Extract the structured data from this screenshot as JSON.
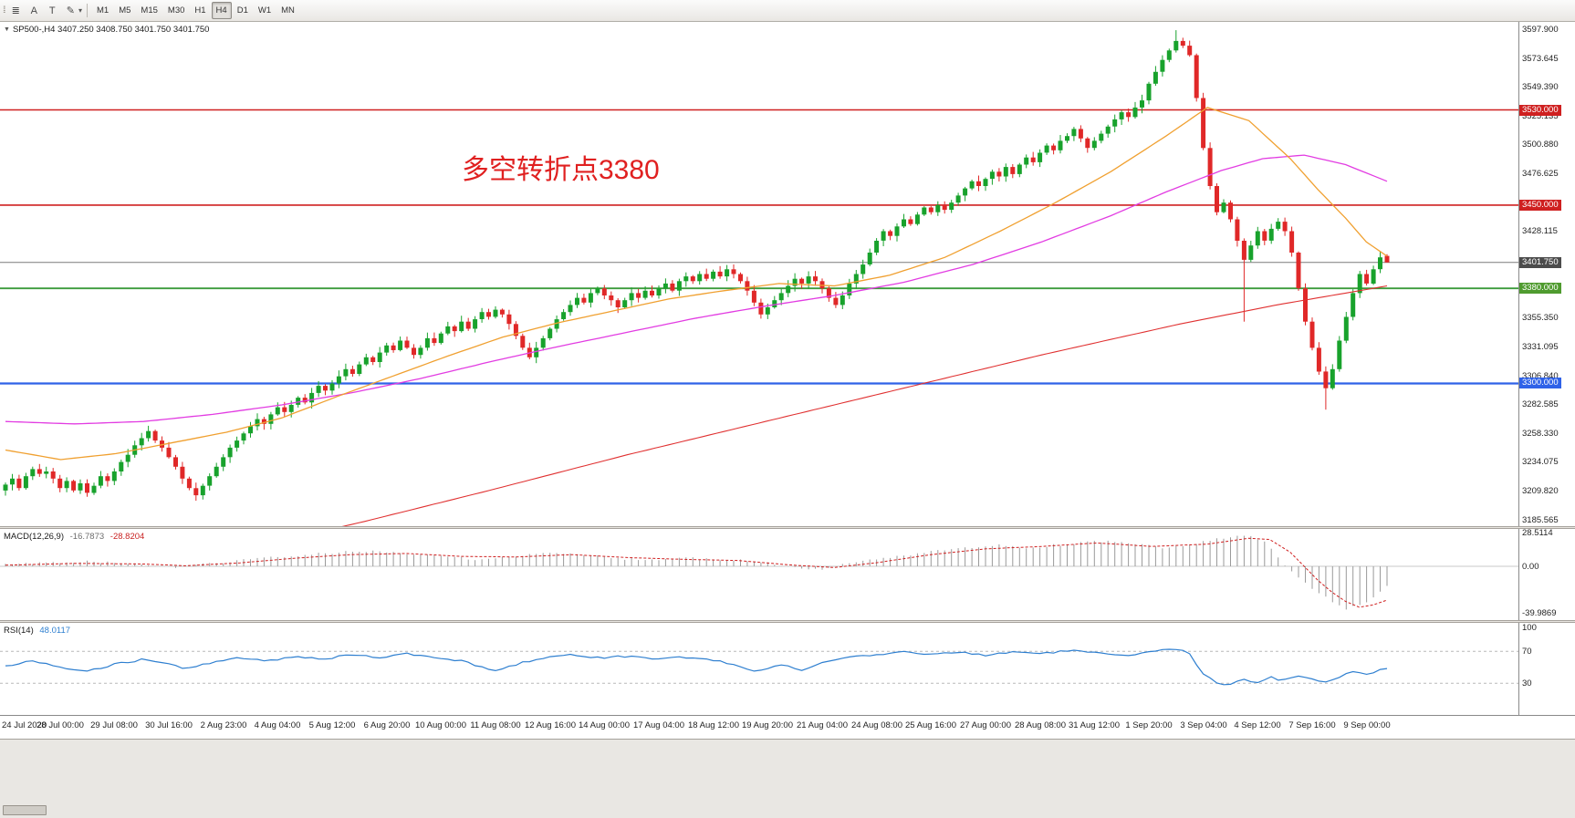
{
  "toolbar": {
    "active_timeframe": "H4",
    "icons": [
      {
        "name": "templates-icon",
        "glyph": "≣"
      },
      {
        "name": "text-annotation-icon",
        "glyph": "A"
      },
      {
        "name": "text-box-icon",
        "glyph": "T"
      },
      {
        "name": "draw-style-icon",
        "glyph": "✎"
      },
      {
        "name": "dropdown-caret-icon",
        "glyph": "▾"
      }
    ],
    "timeframes": [
      "M1",
      "M5",
      "M15",
      "M30",
      "H1",
      "H4",
      "D1",
      "W1",
      "MN"
    ]
  },
  "header": {
    "collapse_glyph": "▼",
    "symbol_line": "SP500-,H4  3407.250 3408.750 3401.750 3401.750"
  },
  "annotation": {
    "text": "多空转折点3380",
    "color": "#e02020"
  },
  "indicators": {
    "macd": {
      "title": "MACD(12,26,9)",
      "main_value": "-16.7873",
      "signal_value": "-28.8204"
    },
    "rsi": {
      "title": "RSI(14)",
      "value": "48.0117"
    }
  },
  "chart_data": {
    "type": "candlestick",
    "symbol": "SP500-",
    "timeframe": "H4",
    "ohlc_current": {
      "open": 3407.25,
      "high": 3408.75,
      "low": 3401.75,
      "close": 3401.75
    },
    "first_open": 3210,
    "closes": [
      3215,
      3220,
      3212,
      3222,
      3228,
      3224,
      3226,
      3220,
      3212,
      3218,
      3210,
      3216,
      3208,
      3214,
      3222,
      3218,
      3226,
      3234,
      3240,
      3248,
      3254,
      3260,
      3252,
      3246,
      3238,
      3230,
      3220,
      3212,
      3206,
      3214,
      3222,
      3230,
      3238,
      3246,
      3252,
      3258,
      3264,
      3270,
      3266,
      3274,
      3280,
      3276,
      3282,
      3288,
      3284,
      3292,
      3298,
      3294,
      3300,
      3306,
      3312,
      3308,
      3316,
      3322,
      3318,
      3326,
      3332,
      3328,
      3336,
      3330,
      3324,
      3330,
      3338,
      3334,
      3342,
      3348,
      3344,
      3352,
      3346,
      3354,
      3360,
      3356,
      3362,
      3358,
      3350,
      3340,
      3330,
      3322,
      3330,
      3338,
      3346,
      3354,
      3360,
      3366,
      3372,
      3368,
      3376,
      3380,
      3374,
      3370,
      3364,
      3370,
      3376,
      3372,
      3378,
      3374,
      3380,
      3384,
      3378,
      3386,
      3390,
      3386,
      3392,
      3388,
      3394,
      3390,
      3396,
      3392,
      3386,
      3378,
      3368,
      3358,
      3364,
      3370,
      3376,
      3382,
      3388,
      3384,
      3390,
      3386,
      3380,
      3372,
      3366,
      3374,
      3384,
      3392,
      3400,
      3410,
      3420,
      3428,
      3424,
      3432,
      3438,
      3434,
      3442,
      3448,
      3444,
      3450,
      3446,
      3452,
      3458,
      3464,
      3470,
      3466,
      3472,
      3478,
      3474,
      3482,
      3476,
      3484,
      3490,
      3486,
      3494,
      3500,
      3496,
      3504,
      3508,
      3514,
      3506,
      3498,
      3504,
      3510,
      3516,
      3522,
      3528,
      3524,
      3532,
      3538,
      3552,
      3562,
      3572,
      3580,
      3588,
      3584,
      3576,
      3540,
      3498,
      3466,
      3444,
      3452,
      3438,
      3420,
      3404,
      3416,
      3428,
      3420,
      3430,
      3436,
      3428,
      3410,
      3380,
      3352,
      3330,
      3310,
      3296,
      3312,
      3336,
      3356,
      3376,
      3392,
      3384,
      3396,
      3406,
      3401.75
    ],
    "wick_overrides": {
      "172": {
        "high": 3597
      },
      "182": {
        "low": 3352
      },
      "194": {
        "low": 3278
      },
      "203": {
        "open": 3407.25,
        "high": 3408.75,
        "low": 3401.75,
        "close": 3401.75
      }
    },
    "levels": [
      {
        "price": 3530.0,
        "label": "3530.000",
        "color": "#cf2020",
        "tag_color": "#cf2020",
        "line_width": 1.6
      },
      {
        "price": 3450.0,
        "label": "3450.000",
        "color": "#cf2020",
        "tag_color": "#cf2020",
        "line_width": 1.6
      },
      {
        "price": 3401.75,
        "label": "3401.750",
        "color": "#7a7a7a",
        "tag_color": "#4c4c4c",
        "line_width": 1
      },
      {
        "price": 3380.0,
        "label": "3380.000",
        "color": "#3b9b3b",
        "tag_color": "#4f9b2f",
        "line_width": 1.8
      },
      {
        "price": 3300.0,
        "label": "3300.000",
        "color": "#2f62e8",
        "tag_color": "#2f62e8",
        "line_width": 2.2
      }
    ],
    "y_axis": [
      3597.9,
      3573.645,
      3549.39,
      3525.135,
      3500.88,
      3476.625,
      3428.115,
      3355.35,
      3331.095,
      3306.84,
      3282.585,
      3258.33,
      3234.075,
      3209.82,
      3185.565
    ],
    "x_labels": [
      "24 Jul 2020",
      "28 Jul 00:00",
      "29 Jul 08:00",
      "30 Jul 16:00",
      "2 Aug 23:00",
      "4 Aug 04:00",
      "5 Aug 12:00",
      "6 Aug 20:00",
      "10 Aug 00:00",
      "11 Aug 08:00",
      "12 Aug 16:00",
      "14 Aug 00:00",
      "17 Aug 04:00",
      "18 Aug 12:00",
      "19 Aug 20:00",
      "21 Aug 04:00",
      "24 Aug 08:00",
      "25 Aug 16:00",
      "27 Aug 00:00",
      "28 Aug 08:00",
      "31 Aug 12:00",
      "1 Sep 20:00",
      "3 Sep 04:00",
      "4 Sep 12:00",
      "7 Sep 16:00",
      "9 Sep 00:00"
    ],
    "ma_orange": [
      [
        0,
        3244
      ],
      [
        0.04,
        3236
      ],
      [
        0.08,
        3241
      ],
      [
        0.12,
        3250
      ],
      [
        0.16,
        3259
      ],
      [
        0.2,
        3271
      ],
      [
        0.24,
        3289
      ],
      [
        0.28,
        3306
      ],
      [
        0.32,
        3323
      ],
      [
        0.36,
        3339
      ],
      [
        0.4,
        3351
      ],
      [
        0.44,
        3361
      ],
      [
        0.48,
        3371
      ],
      [
        0.52,
        3378
      ],
      [
        0.56,
        3384
      ],
      [
        0.6,
        3382
      ],
      [
        0.64,
        3391
      ],
      [
        0.68,
        3406
      ],
      [
        0.72,
        3428
      ],
      [
        0.76,
        3452
      ],
      [
        0.8,
        3478
      ],
      [
        0.84,
        3508
      ],
      [
        0.87,
        3532
      ],
      [
        0.9,
        3521
      ],
      [
        0.93,
        3489
      ],
      [
        0.95,
        3463
      ],
      [
        0.97,
        3439
      ],
      [
        0.985,
        3419
      ],
      [
        1,
        3407
      ]
    ],
    "ma_magenta": [
      [
        0,
        3268
      ],
      [
        0.05,
        3266
      ],
      [
        0.1,
        3268
      ],
      [
        0.15,
        3274
      ],
      [
        0.2,
        3282
      ],
      [
        0.25,
        3292
      ],
      [
        0.3,
        3304
      ],
      [
        0.35,
        3318
      ],
      [
        0.4,
        3331
      ],
      [
        0.45,
        3343
      ],
      [
        0.5,
        3355
      ],
      [
        0.55,
        3365
      ],
      [
        0.6,
        3374
      ],
      [
        0.65,
        3385
      ],
      [
        0.7,
        3400
      ],
      [
        0.75,
        3419
      ],
      [
        0.8,
        3441
      ],
      [
        0.84,
        3461
      ],
      [
        0.88,
        3479
      ],
      [
        0.91,
        3489
      ],
      [
        0.94,
        3492
      ],
      [
        0.97,
        3484
      ],
      [
        1,
        3470
      ]
    ],
    "ma_red": [
      [
        0,
        3128
      ],
      [
        0.1,
        3148
      ],
      [
        0.2,
        3168
      ],
      [
        0.26,
        3184
      ],
      [
        0.35,
        3210
      ],
      [
        0.45,
        3240
      ],
      [
        0.55,
        3268
      ],
      [
        0.65,
        3296
      ],
      [
        0.75,
        3324
      ],
      [
        0.85,
        3350
      ],
      [
        0.92,
        3366
      ],
      [
        1,
        3382
      ]
    ],
    "macd": {
      "axis": [
        {
          "v": 28.5114,
          "t": "28.5114"
        },
        {
          "v": 0,
          "t": "0.00"
        },
        {
          "v": -39.9869,
          "t": "-39.9869"
        }
      ],
      "hist": [
        [
          0,
          1.5
        ],
        [
          0.03,
          3
        ],
        [
          0.06,
          4.2
        ],
        [
          0.09,
          2
        ],
        [
          0.12,
          -0.8
        ],
        [
          0.14,
          1.2
        ],
        [
          0.17,
          5
        ],
        [
          0.2,
          8
        ],
        [
          0.23,
          11
        ],
        [
          0.26,
          13
        ],
        [
          0.29,
          11
        ],
        [
          0.32,
          8
        ],
        [
          0.35,
          5.5
        ],
        [
          0.37,
          9
        ],
        [
          0.4,
          12
        ],
        [
          0.43,
          9
        ],
        [
          0.46,
          5
        ],
        [
          0.49,
          7
        ],
        [
          0.52,
          6
        ],
        [
          0.55,
          3
        ],
        [
          0.57,
          -1
        ],
        [
          0.59,
          -3
        ],
        [
          0.61,
          2
        ],
        [
          0.63,
          6
        ],
        [
          0.66,
          11
        ],
        [
          0.69,
          15
        ],
        [
          0.72,
          18
        ],
        [
          0.74,
          16
        ],
        [
          0.77,
          19
        ],
        [
          0.8,
          22
        ],
        [
          0.82,
          19
        ],
        [
          0.84,
          15
        ],
        [
          0.86,
          19
        ],
        [
          0.88,
          24
        ],
        [
          0.9,
          26
        ],
        [
          0.91,
          22
        ],
        [
          0.92,
          10
        ],
        [
          0.93,
          -4
        ],
        [
          0.94,
          -14
        ],
        [
          0.95,
          -23
        ],
        [
          0.96,
          -30
        ],
        [
          0.97,
          -36
        ],
        [
          0.98,
          -34
        ],
        [
          0.99,
          -26
        ],
        [
          1,
          -16.8
        ]
      ],
      "signal": [
        [
          0,
          1
        ],
        [
          0.05,
          2.5
        ],
        [
          0.1,
          2
        ],
        [
          0.13,
          0.5
        ],
        [
          0.17,
          3
        ],
        [
          0.21,
          7
        ],
        [
          0.25,
          10
        ],
        [
          0.29,
          11
        ],
        [
          0.33,
          8.5
        ],
        [
          0.37,
          8
        ],
        [
          0.41,
          10
        ],
        [
          0.45,
          7.5
        ],
        [
          0.49,
          6
        ],
        [
          0.53,
          5
        ],
        [
          0.57,
          1
        ],
        [
          0.6,
          -1
        ],
        [
          0.63,
          3
        ],
        [
          0.67,
          10
        ],
        [
          0.71,
          15
        ],
        [
          0.75,
          17
        ],
        [
          0.79,
          20
        ],
        [
          0.83,
          17
        ],
        [
          0.87,
          19
        ],
        [
          0.9,
          24
        ],
        [
          0.915,
          23
        ],
        [
          0.93,
          12
        ],
        [
          0.94,
          0
        ],
        [
          0.95,
          -12
        ],
        [
          0.96,
          -22
        ],
        [
          0.97,
          -30
        ],
        [
          0.98,
          -35
        ],
        [
          0.99,
          -33
        ],
        [
          1,
          -28.82
        ]
      ]
    },
    "rsi": {
      "axis": [
        {
          "v": 100,
          "t": "100"
        },
        {
          "v": 70,
          "t": "70"
        },
        {
          "v": 30,
          "t": "30"
        }
      ],
      "levels": [
        70,
        30
      ],
      "anchors": [
        [
          0,
          52
        ],
        [
          0.02,
          58
        ],
        [
          0.04,
          50
        ],
        [
          0.06,
          46
        ],
        [
          0.08,
          54
        ],
        [
          0.1,
          60
        ],
        [
          0.12,
          55
        ],
        [
          0.13,
          48
        ],
        [
          0.15,
          56
        ],
        [
          0.17,
          62
        ],
        [
          0.19,
          58
        ],
        [
          0.21,
          64
        ],
        [
          0.23,
          60
        ],
        [
          0.25,
          66
        ],
        [
          0.27,
          62
        ],
        [
          0.29,
          67
        ],
        [
          0.31,
          63
        ],
        [
          0.33,
          58
        ],
        [
          0.345,
          50
        ],
        [
          0.356,
          45
        ],
        [
          0.37,
          54
        ],
        [
          0.39,
          62
        ],
        [
          0.41,
          66
        ],
        [
          0.43,
          62
        ],
        [
          0.45,
          64
        ],
        [
          0.47,
          60
        ],
        [
          0.49,
          63
        ],
        [
          0.51,
          60
        ],
        [
          0.53,
          52
        ],
        [
          0.543,
          44
        ],
        [
          0.555,
          50
        ],
        [
          0.565,
          54
        ],
        [
          0.575,
          46
        ],
        [
          0.59,
          55
        ],
        [
          0.61,
          62
        ],
        [
          0.63,
          66
        ],
        [
          0.65,
          70
        ],
        [
          0.67,
          66
        ],
        [
          0.69,
          69
        ],
        [
          0.71,
          65
        ],
        [
          0.73,
          70
        ],
        [
          0.75,
          67
        ],
        [
          0.77,
          71
        ],
        [
          0.79,
          68
        ],
        [
          0.81,
          64
        ],
        [
          0.83,
          70
        ],
        [
          0.845,
          73
        ],
        [
          0.856,
          70
        ],
        [
          0.865,
          45
        ],
        [
          0.875,
          32
        ],
        [
          0.885,
          28
        ],
        [
          0.895,
          36
        ],
        [
          0.905,
          30
        ],
        [
          0.915,
          38
        ],
        [
          0.925,
          33
        ],
        [
          0.935,
          40
        ],
        [
          0.945,
          35
        ],
        [
          0.955,
          31
        ],
        [
          0.965,
          38
        ],
        [
          0.975,
          44
        ],
        [
          0.985,
          41
        ],
        [
          0.995,
          47
        ],
        [
          1,
          48
        ]
      ]
    },
    "colors": {
      "up": "#18a22c",
      "down": "#e02828",
      "ma_fast": "#f0a030",
      "ma_mid": "#e23ce2",
      "ma_slow": "#e03030",
      "hist": "#9a9a9a",
      "signal": "#d02020",
      "rsi": "#2e7fd0"
    }
  }
}
